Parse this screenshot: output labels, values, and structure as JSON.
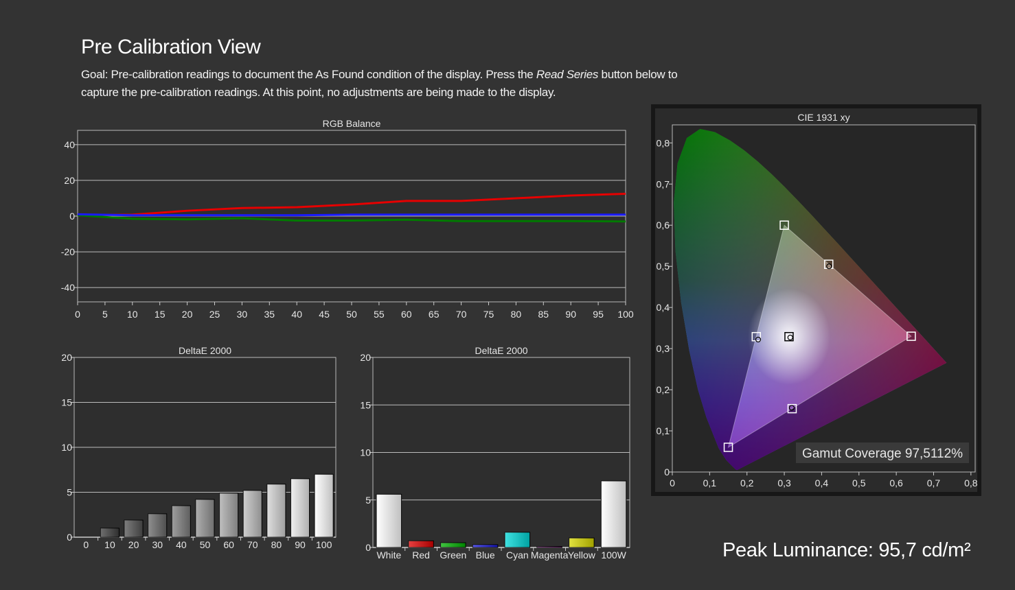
{
  "header": {
    "title": "Pre Calibration View",
    "goal_prefix": "Goal: Pre-calibration readings to document the As Found condition of the display. Press the ",
    "goal_emph": "Read Series",
    "goal_suffix": " button below to capture the pre-calibration readings. At this point, no adjustments are being made to the display."
  },
  "peak": {
    "label": "Peak Luminance: 95,7 cd/m²"
  },
  "chart_data": [
    {
      "id": "rgb",
      "type": "line",
      "title": "RGB Balance",
      "ylim": [
        -48,
        48
      ],
      "xlim": [
        0,
        100
      ],
      "yticks": [
        40,
        20,
        0,
        -20,
        -40
      ],
      "xticks": [
        0,
        5,
        10,
        15,
        20,
        25,
        30,
        35,
        40,
        45,
        50,
        55,
        60,
        65,
        70,
        75,
        80,
        85,
        90,
        95,
        100
      ],
      "grid": true,
      "x": [
        0,
        10,
        20,
        30,
        40,
        50,
        60,
        70,
        80,
        90,
        100
      ],
      "series": [
        {
          "color": "#e60000",
          "values": [
            0.5,
            0.8,
            3,
            4.5,
            5,
            6.5,
            8.5,
            8.5,
            10,
            11.5,
            12.5
          ]
        },
        {
          "color": "#007a00",
          "values": [
            0.5,
            -1.5,
            -1.8,
            -1.2,
            -2.5,
            -2.5,
            -2,
            -2.8,
            -2.8,
            -2.8,
            -3
          ]
        },
        {
          "color": "#1a1aff",
          "values": [
            1,
            0.5,
            0.5,
            0.5,
            0.5,
            0.8,
            0.8,
            0.8,
            0.8,
            0.8,
            0.8
          ]
        }
      ]
    },
    {
      "id": "de_gray",
      "type": "bar",
      "title": "DeltaE 2000",
      "ylim": [
        0,
        20
      ],
      "yticks": [
        20,
        15,
        10,
        5,
        0
      ],
      "categories": [
        "0",
        "10",
        "20",
        "30",
        "40",
        "50",
        "60",
        "70",
        "80",
        "90",
        "100"
      ],
      "values": [
        0,
        1,
        1.9,
        2.6,
        3.5,
        4.2,
        4.9,
        5.2,
        5.9,
        6.5,
        7
      ]
    },
    {
      "id": "de_color",
      "type": "bar",
      "title": "DeltaE 2000",
      "ylim": [
        0,
        20
      ],
      "yticks": [
        20,
        15,
        10,
        5,
        0
      ],
      "categories": [
        "White",
        "Red",
        "Green",
        "Blue",
        "Cyan",
        "Magenta",
        "Yellow",
        "100W"
      ],
      "values": [
        5.6,
        0.7,
        0.5,
        0.3,
        1.6,
        0.1,
        1,
        7
      ],
      "colors": [
        "#ffffff",
        "#dd0000",
        "#00b000",
        "#1a1ae0",
        "#00d8d8",
        "#d000d0",
        "#d8d800",
        "#ffffff"
      ]
    },
    {
      "id": "cie",
      "type": "scatter",
      "title": "CIE 1931 xy",
      "xlim": [
        0,
        0.8
      ],
      "ylim": [
        0,
        0.8
      ],
      "xticks": [
        "0",
        "0,1",
        "0,2",
        "0,3",
        "0,4",
        "0,5",
        "0,6",
        "0,7",
        "0,8"
      ],
      "yticks": [
        "0",
        "0,1",
        "0,2",
        "0,3",
        "0,4",
        "0,5",
        "0,6",
        "0,7",
        "0,8"
      ],
      "annotation": "Gamut Coverage 97,5112%",
      "targets": [
        {
          "name": "Red",
          "x": 0.64,
          "y": 0.33
        },
        {
          "name": "Green",
          "x": 0.3,
          "y": 0.6
        },
        {
          "name": "Blue",
          "x": 0.15,
          "y": 0.06
        },
        {
          "name": "Yellow",
          "x": 0.419,
          "y": 0.505
        },
        {
          "name": "Cyan",
          "x": 0.225,
          "y": 0.329
        },
        {
          "name": "Magenta",
          "x": 0.321,
          "y": 0.154
        },
        {
          "name": "White",
          "x": 0.3127,
          "y": 0.329
        }
      ],
      "measured": [
        {
          "name": "Red",
          "x": 0.64,
          "y": 0.33
        },
        {
          "name": "Green",
          "x": 0.3,
          "y": 0.6
        },
        {
          "name": "Blue",
          "x": 0.15,
          "y": 0.06
        },
        {
          "name": "Yellow",
          "x": 0.42,
          "y": 0.5
        },
        {
          "name": "Cyan",
          "x": 0.23,
          "y": 0.322
        },
        {
          "name": "Magenta",
          "x": 0.32,
          "y": 0.156
        },
        {
          "name": "White",
          "x": 0.316,
          "y": 0.327
        }
      ]
    }
  ]
}
